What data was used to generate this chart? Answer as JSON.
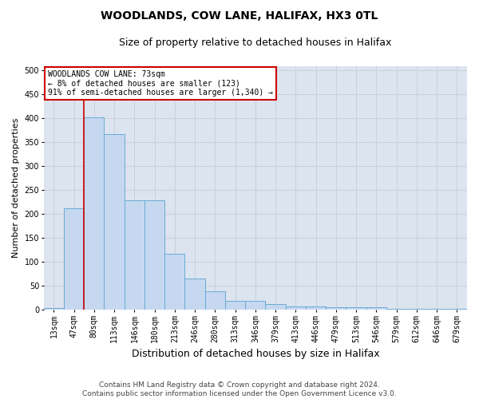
{
  "title": "WOODLANDS, COW LANE, HALIFAX, HX3 0TL",
  "subtitle": "Size of property relative to detached houses in Halifax",
  "xlabel": "Distribution of detached houses by size in Halifax",
  "ylabel": "Number of detached properties",
  "bar_labels": [
    "13sqm",
    "47sqm",
    "80sqm",
    "113sqm",
    "146sqm",
    "180sqm",
    "213sqm",
    "246sqm",
    "280sqm",
    "313sqm",
    "346sqm",
    "379sqm",
    "413sqm",
    "446sqm",
    "479sqm",
    "513sqm",
    "546sqm",
    "579sqm",
    "612sqm",
    "646sqm",
    "679sqm"
  ],
  "bar_values": [
    3,
    212,
    403,
    368,
    229,
    229,
    117,
    65,
    39,
    18,
    18,
    11,
    6,
    6,
    5,
    5,
    5,
    2,
    2,
    2,
    2
  ],
  "bar_color": "#c5d8f0",
  "bar_edge_color": "#6aaad4",
  "vline_x_index": 2,
  "vline_color": "#cc0000",
  "annotation_title": "WOODLANDS COW LANE: 73sqm",
  "annotation_line1": "← 8% of detached houses are smaller (123)",
  "annotation_line2": "91% of semi-detached houses are larger (1,340) →",
  "annotation_box_color": "#ffffff",
  "annotation_box_edge_color": "#cc0000",
  "grid_color": "#c8d0dc",
  "bg_color": "#dce4f0",
  "footer1": "Contains HM Land Registry data © Crown copyright and database right 2024.",
  "footer2": "Contains public sector information licensed under the Open Government Licence v3.0.",
  "ylim_max": 510,
  "yticks": [
    0,
    50,
    100,
    150,
    200,
    250,
    300,
    350,
    400,
    450,
    500
  ],
  "title_fontsize": 10,
  "subtitle_fontsize": 9,
  "ylabel_fontsize": 8,
  "xlabel_fontsize": 9,
  "tick_fontsize": 7,
  "footer_fontsize": 6.5
}
